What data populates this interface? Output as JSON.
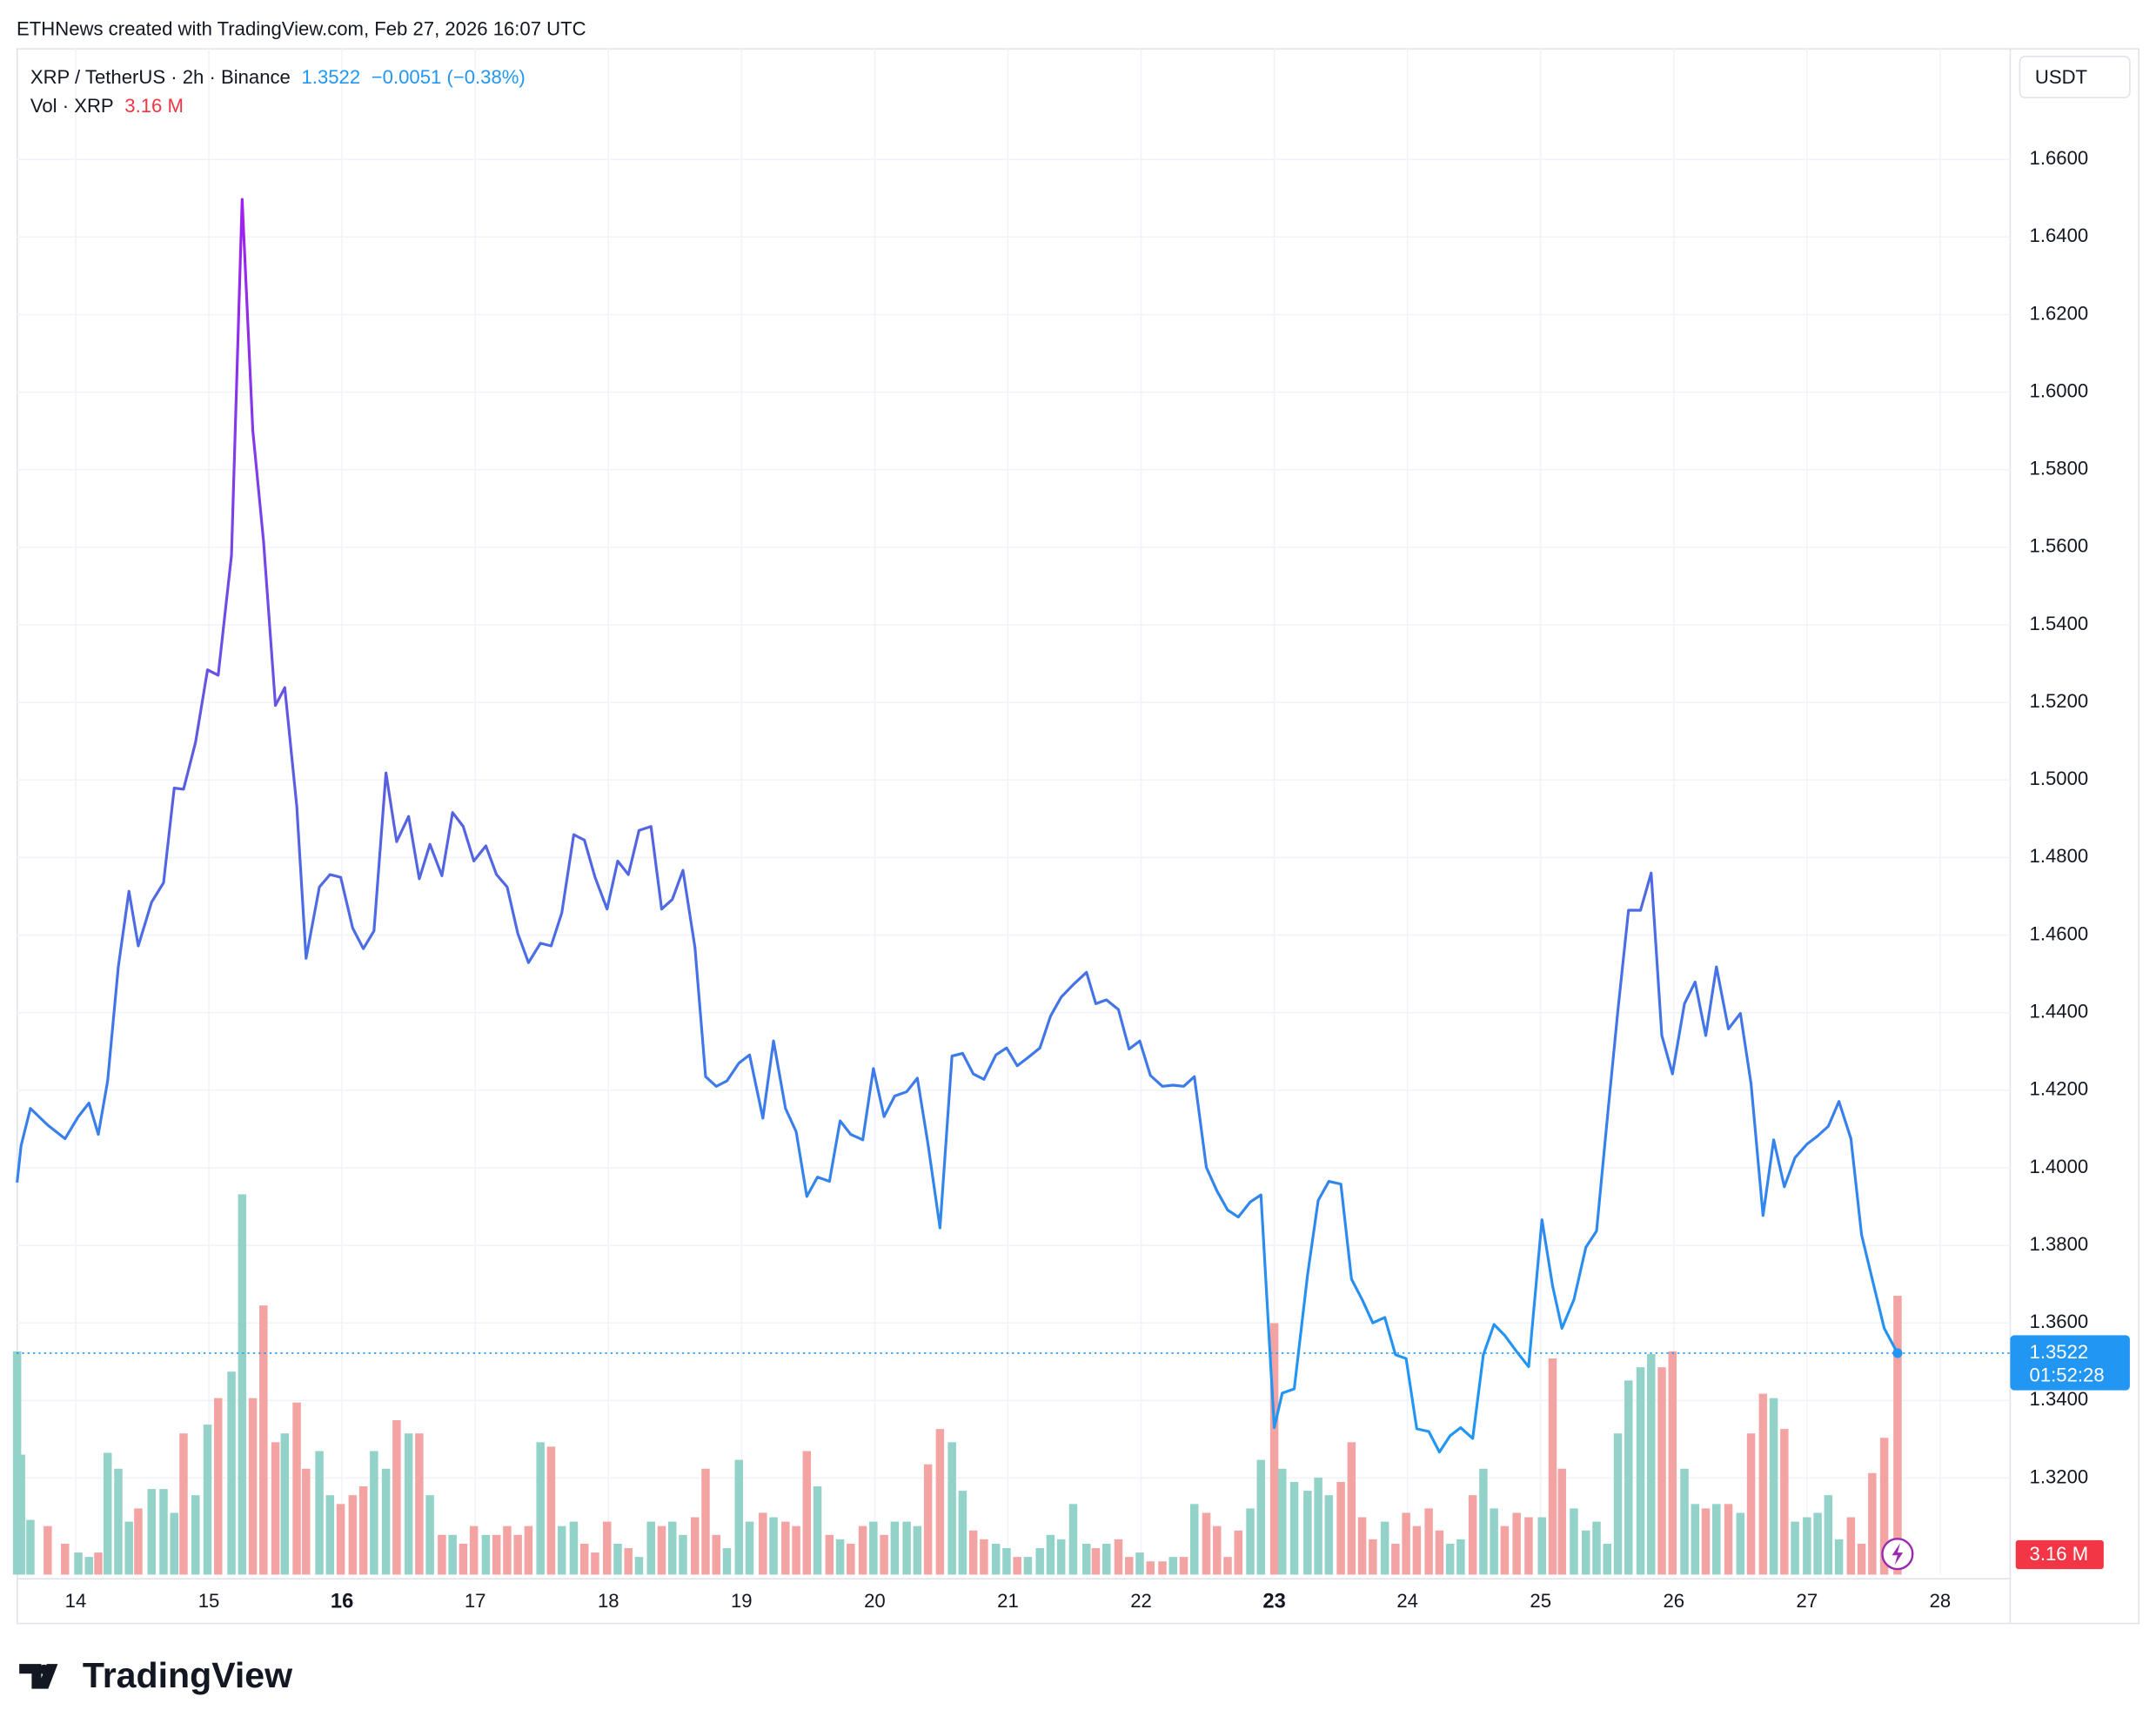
{
  "chart_data": {
    "type": "line",
    "source": "ETHNews created with TradingView.com, Feb 27, 2026 16:07 UTC",
    "change": "−0.0051 (−0.38%)",
    "currency": "USDT",
    "countdown": "01:52:28",
    "brand": "TradingView",
    "grid": true,
    "x": [
      13.56,
      13.59,
      13.66,
      13.79,
      13.92,
      14.02,
      14.1,
      14.17,
      14.24,
      14.32,
      14.4,
      14.47,
      14.57,
      14.66,
      14.74,
      14.81,
      14.9,
      14.99,
      15.07,
      15.17,
      15.25,
      15.33,
      15.41,
      15.5,
      15.57,
      15.66,
      15.73,
      15.83,
      15.91,
      15.99,
      16.08,
      16.16,
      16.24,
      16.33,
      16.41,
      16.5,
      16.58,
      16.66,
      16.75,
      16.83,
      16.91,
      16.99,
      17.08,
      17.16,
      17.24,
      17.32,
      17.4,
      17.49,
      17.57,
      17.65,
      17.74,
      17.82,
      17.9,
      17.99,
      18.07,
      18.15,
      18.23,
      18.32,
      18.4,
      18.48,
      18.56,
      18.65,
      18.73,
      18.81,
      18.89,
      18.98,
      19.06,
      19.16,
      19.24,
      19.33,
      19.41,
      19.49,
      19.57,
      19.66,
      19.74,
      19.82,
      19.91,
      19.99,
      20.07,
      20.15,
      20.24,
      20.32,
      20.4,
      20.49,
      20.58,
      20.66,
      20.74,
      20.82,
      20.91,
      20.99,
      21.07,
      21.15,
      21.24,
      21.32,
      21.4,
      21.49,
      21.59,
      21.66,
      21.74,
      21.83,
      21.91,
      21.99,
      22.07,
      22.16,
      22.24,
      22.32,
      22.4,
      22.49,
      22.57,
      22.65,
      22.73,
      22.82,
      22.9,
      23.0,
      23.06,
      23.15,
      23.25,
      23.33,
      23.41,
      23.5,
      23.58,
      23.66,
      23.74,
      23.83,
      23.91,
      23.99,
      24.07,
      24.16,
      24.24,
      24.32,
      24.4,
      24.49,
      24.57,
      24.65,
      24.73,
      24.82,
      24.91,
      25.01,
      25.09,
      25.16,
      25.25,
      25.34,
      25.42,
      25.5,
      25.58,
      25.66,
      25.75,
      25.83,
      25.91,
      25.99,
      26.08,
      26.16,
      26.24,
      26.32,
      26.41,
      26.5,
      26.58,
      26.67,
      26.75,
      26.83,
      26.91,
      27.0,
      27.08,
      27.16,
      27.24,
      27.33,
      27.41,
      27.49,
      27.58,
      27.68
    ],
    "series": [
      {
        "name": "XRP / TetherUS · 2h · Binance",
        "gradient": [
          "#a020f0",
          "#5a5ee0",
          "#2196f3"
        ],
        "last_color": "#2196f3",
        "values": [
          1.3962,
          1.4057,
          1.4153,
          1.411,
          1.4075,
          1.4132,
          1.4167,
          1.4086,
          1.4224,
          1.4518,
          1.4713,
          1.4572,
          1.4685,
          1.4735,
          1.4979,
          1.4976,
          1.5097,
          1.5284,
          1.527,
          1.5579,
          1.6497,
          1.5901,
          1.5618,
          1.5192,
          1.5238,
          1.4933,
          1.454,
          1.4724,
          1.4756,
          1.4749,
          1.4618,
          1.4565,
          1.4611,
          1.5018,
          1.4841,
          1.4906,
          1.4745,
          1.4834,
          1.4753,
          1.4916,
          1.488,
          1.4791,
          1.483,
          1.4756,
          1.4724,
          1.4604,
          1.4529,
          1.4579,
          1.4572,
          1.4657,
          1.4859,
          1.4845,
          1.4749,
          1.4667,
          1.4791,
          1.4756,
          1.487,
          1.488,
          1.4667,
          1.4692,
          1.4767,
          1.4568,
          1.4235,
          1.421,
          1.4224,
          1.427,
          1.4291,
          1.4128,
          1.4327,
          1.4153,
          1.4093,
          1.3926,
          1.3976,
          1.3965,
          1.4121,
          1.4086,
          1.4072,
          1.4256,
          1.4132,
          1.4185,
          1.4196,
          1.4231,
          1.4061,
          1.3845,
          1.4288,
          1.4295,
          1.4242,
          1.4228,
          1.4291,
          1.4309,
          1.4263,
          1.4284,
          1.4309,
          1.4391,
          1.444,
          1.4472,
          1.4504,
          1.4423,
          1.4433,
          1.4408,
          1.4306,
          1.4327,
          1.4238,
          1.421,
          1.4213,
          1.421,
          1.4235,
          1.4001,
          1.394,
          1.3891,
          1.3873,
          1.3912,
          1.393,
          1.333,
          1.3419,
          1.343,
          1.3724,
          1.3916,
          1.3965,
          1.3958,
          1.3713,
          1.366,
          1.36,
          1.3614,
          1.3518,
          1.3508,
          1.3327,
          1.332,
          1.3267,
          1.3309,
          1.333,
          1.3302,
          1.3518,
          1.3596,
          1.3568,
          1.3526,
          1.3487,
          1.3866,
          1.3695,
          1.3586,
          1.366,
          1.3795,
          1.3837,
          1.4125,
          1.4405,
          1.4664,
          1.4664,
          1.476,
          1.4341,
          1.4242,
          1.4423,
          1.4479,
          1.4341,
          1.4518,
          1.4358,
          1.4398,
          1.4217,
          1.3877,
          1.4072,
          1.3951,
          1.4026,
          1.4061,
          1.4082,
          1.4107,
          1.4171,
          1.4075,
          1.3827,
          1.3713,
          1.3586,
          1.3522
        ]
      },
      {
        "name": "Vol · XRP",
        "type": "bar",
        "axis": "y2",
        "up_color": "#92d2c9",
        "down_color": "#f4a3a3",
        "label_color": "#f23645",
        "last_value_label": "3.16 M",
        "values": [
          2.53,
          1.36,
          0.62,
          0.55,
          0.35,
          0.25,
          0.2,
          0.25,
          1.38,
          1.2,
          0.6,
          0.75,
          0.97,
          0.97,
          0.7,
          1.6,
          0.9,
          1.7,
          2.0,
          2.3,
          4.31,
          2.0,
          3.05,
          1.5,
          1.6,
          1.95,
          1.2,
          1.4,
          0.9,
          0.8,
          0.9,
          1.0,
          1.4,
          1.2,
          1.75,
          1.6,
          1.6,
          0.9,
          0.45,
          0.45,
          0.35,
          0.55,
          0.45,
          0.45,
          0.55,
          0.45,
          0.55,
          1.5,
          1.45,
          0.55,
          0.6,
          0.35,
          0.25,
          0.6,
          0.35,
          0.3,
          0.2,
          0.6,
          0.55,
          0.6,
          0.45,
          0.65,
          1.2,
          0.45,
          0.3,
          1.3,
          0.6,
          0.7,
          0.65,
          0.6,
          0.55,
          1.4,
          1.0,
          0.45,
          0.4,
          0.35,
          0.55,
          0.6,
          0.45,
          0.6,
          0.6,
          0.55,
          1.25,
          1.65,
          1.5,
          0.95,
          0.5,
          0.4,
          0.35,
          0.3,
          0.2,
          0.2,
          0.3,
          0.45,
          0.4,
          0.8,
          0.35,
          0.3,
          0.35,
          0.4,
          0.2,
          0.25,
          0.15,
          0.15,
          0.2,
          0.2,
          0.8,
          0.7,
          0.55,
          0.2,
          0.5,
          0.75,
          1.3,
          2.85,
          1.2,
          1.05,
          0.95,
          1.1,
          0.9,
          1.05,
          1.5,
          0.65,
          0.4,
          0.6,
          0.35,
          0.7,
          0.55,
          0.75,
          0.5,
          0.35,
          0.4,
          0.9,
          1.2,
          0.75,
          0.55,
          0.7,
          0.65,
          0.65,
          2.45,
          1.2,
          0.75,
          0.5,
          0.6,
          0.35,
          1.6,
          2.2,
          2.35,
          2.5,
          2.35,
          2.53,
          1.2,
          0.8,
          0.75,
          0.8,
          0.8,
          0.7,
          1.6,
          2.05,
          2.0,
          1.65,
          0.6,
          0.65,
          0.7,
          0.9,
          0.4,
          0.65,
          0.35,
          1.15,
          1.55,
          3.16
        ]
      }
    ],
    "xlim": [
      13.556,
      28.526
    ],
    "xticks": [
      14,
      15,
      16,
      17,
      18,
      19,
      20,
      21,
      22,
      23,
      24,
      25,
      26,
      27,
      28
    ],
    "bold_xticks": [
      16,
      23
    ],
    "ylim": [
      1.2951,
      1.6887
    ],
    "yticks": [
      {
        "value": 1.32,
        "label": "1.3200"
      },
      {
        "value": 1.34,
        "label": "1.3400"
      },
      {
        "value": 1.36,
        "label": "1.3600"
      },
      {
        "value": 1.38,
        "label": "1.3800"
      },
      {
        "value": 1.4,
        "label": "1.4000"
      },
      {
        "value": 1.42,
        "label": "1.4200"
      },
      {
        "value": 1.44,
        "label": "1.4400"
      },
      {
        "value": 1.46,
        "label": "1.4600"
      },
      {
        "value": 1.48,
        "label": "1.4800"
      },
      {
        "value": 1.5,
        "label": "1.5000"
      },
      {
        "value": 1.52,
        "label": "1.5200"
      },
      {
        "value": 1.54,
        "label": "1.5400"
      },
      {
        "value": 1.56,
        "label": "1.5600"
      },
      {
        "value": 1.58,
        "label": "1.5800"
      },
      {
        "value": 1.6,
        "label": "1.6000"
      },
      {
        "value": 1.62,
        "label": "1.6200"
      },
      {
        "value": 1.64,
        "label": "1.6400"
      },
      {
        "value": 1.66,
        "label": "1.6600"
      }
    ],
    "y2lim": [
      0,
      17.3
    ]
  }
}
